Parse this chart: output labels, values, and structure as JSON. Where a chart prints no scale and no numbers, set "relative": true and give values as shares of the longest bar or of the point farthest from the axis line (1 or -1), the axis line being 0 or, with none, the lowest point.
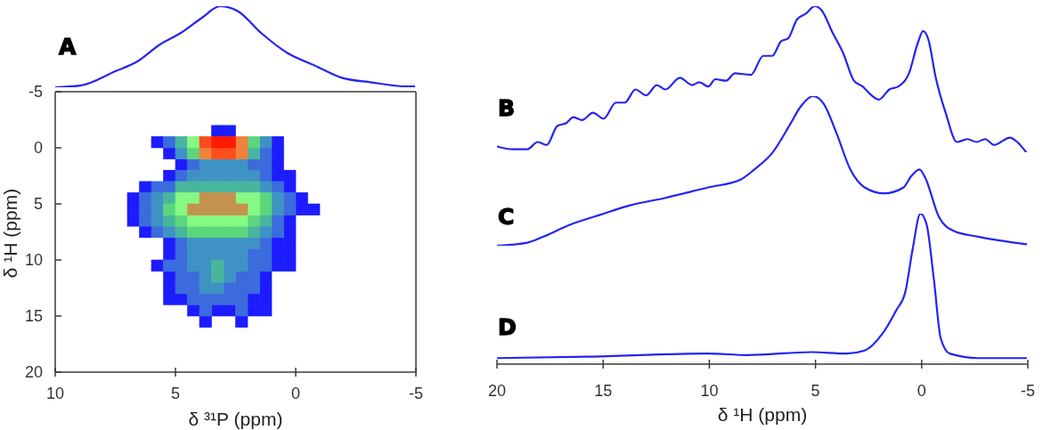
{
  "chart_data": [
    {
      "type": "line",
      "x": [
        10.0,
        8.96,
        7.48,
        6.63,
        5.63,
        4.78,
        3.89,
        3.15,
        2.41,
        1.44,
        0.33,
        -0.78,
        -1.89,
        -3.15,
        -4.63,
        -4.93
      ],
      "values": [
        0,
        0.02,
        0.2,
        0.31,
        0.53,
        0.67,
        0.86,
        1,
        0.94,
        0.67,
        0.42,
        0.27,
        0.12,
        0.06,
        0.01,
        0.01
      ],
      "color": "#2424f2",
      "relative": true,
      "xlim": [
        10,
        -5
      ],
      "tick_labels": false,
      "annotations": [
        "A"
      ]
    },
    {
      "type": "scatter",
      "marker": "square",
      "series": [
        {
          "color": "#1c1cff",
          "x": [
            3.25,
            2.75,
            5.75,
            0.75,
            5.25,
            0.75,
            4.75,
            0.75,
            5.25,
            0.75,
            0.25,
            6.25,
            0.25,
            6.75,
            -0.25,
            6.75,
            -0.25,
            -0.75,
            6.75,
            0.25,
            6.25,
            0.25,
            5.25,
            0.75,
            0.25,
            5.25,
            0.75,
            0.25,
            5.75,
            0.75,
            0.25,
            5.25,
            1.25,
            5.25,
            1.25,
            5.25,
            4.75,
            1.75,
            1.25,
            4.25,
            3.25,
            2.75,
            1.75,
            1.25,
            3.75,
            2.25
          ],
          "values": [
            -1.5,
            -1.5,
            -0.5,
            -0.5,
            0.5,
            0.5,
            1.5,
            1.5,
            2.5,
            2.5,
            2.5,
            3.5,
            3.5,
            4.5,
            4.5,
            5.5,
            5.5,
            5.5,
            6.5,
            6.5,
            7.5,
            7.5,
            8.5,
            8.5,
            8.5,
            9.5,
            9.5,
            9.5,
            10.5,
            10.5,
            10.5,
            11.5,
            11.5,
            12.5,
            12.5,
            13.5,
            13.5,
            13.5,
            13.5,
            14.5,
            14.5,
            14.5,
            14.5,
            14.5,
            15.5,
            15.5
          ]
        },
        {
          "color": "#3b6bdc",
          "x": [
            5.25,
            1.25,
            4.25,
            1.75,
            1.25,
            4.75,
            1.25,
            5.75,
            5.25,
            0.75,
            6.25,
            0.25,
            6.25,
            0.25,
            6.25,
            0.75,
            5.75,
            0.75,
            4.75,
            1.25,
            4.75,
            1.75,
            1.25,
            5.25,
            4.75,
            1.75,
            1.25,
            4.75,
            4.25,
            2.25,
            1.75,
            4.75,
            4.25,
            2.75,
            2.25,
            1.75,
            4.25,
            3.75,
            3.25,
            2.75,
            2.25,
            3.75,
            2.25
          ],
          "values": [
            -0.5,
            0.5,
            1.5,
            1.5,
            1.5,
            2.5,
            2.5,
            3.5,
            3.5,
            3.5,
            4.5,
            4.5,
            5.5,
            5.5,
            6.5,
            6.5,
            7.5,
            7.5,
            8.5,
            8.5,
            9.5,
            9.5,
            9.5,
            10.5,
            10.5,
            10.5,
            10.5,
            11.5,
            11.5,
            11.5,
            11.5,
            12.5,
            12.5,
            12.5,
            12.5,
            12.5,
            13.5,
            13.5,
            13.5,
            13.5,
            13.5,
            14.5,
            14.5
          ]
        },
        {
          "color": "#3f92c4",
          "x": [
            1.25,
            4.75,
            3.75,
            3.25,
            2.75,
            2.25,
            4.25,
            3.75,
            3.25,
            2.75,
            2.25,
            1.75,
            1.25,
            5.75,
            0.75,
            5.75,
            0.75,
            5.75,
            5.25,
            1.25,
            4.25,
            3.75,
            3.25,
            2.75,
            2.25,
            1.75,
            4.25,
            3.75,
            3.25,
            2.75,
            2.25,
            4.25,
            3.75,
            2.75,
            2.25,
            3.75,
            2.75,
            3.75,
            3.25
          ],
          "values": [
            -0.5,
            0.5,
            1.5,
            1.5,
            1.5,
            1.5,
            2.5,
            2.5,
            2.5,
            2.5,
            2.5,
            2.5,
            3.5,
            4.5,
            4.5,
            5.5,
            5.5,
            6.5,
            7.5,
            7.5,
            8.5,
            8.5,
            8.5,
            8.5,
            8.5,
            8.5,
            9.5,
            9.5,
            9.5,
            9.5,
            9.5,
            10.5,
            10.5,
            10.5,
            10.5,
            11.5,
            11.5,
            12.5,
            12.5
          ]
        },
        {
          "color": "#48b69c",
          "x": [
            4.75,
            1.75,
            4.75,
            4.25,
            3.75,
            3.25,
            2.75,
            2.25,
            1.75,
            5.25,
            5.25,
            1.25,
            4.75,
            1.75,
            3.25,
            3.25
          ],
          "values": [
            -0.5,
            0.5,
            3.5,
            3.5,
            3.5,
            3.5,
            3.5,
            3.5,
            3.5,
            4.5,
            6.5,
            6.5,
            7.5,
            7.5,
            10.5,
            11.5
          ]
        },
        {
          "color": "#5cd67c",
          "x": [
            1.75,
            4.25,
            1.25,
            5.25,
            1.25,
            4.75,
            1.75,
            4.25,
            3.75,
            3.25,
            2.75,
            2.25
          ],
          "values": [
            -0.5,
            0.5,
            4.5,
            5.5,
            5.5,
            6.5,
            6.5,
            7.5,
            7.5,
            7.5,
            7.5,
            7.5
          ]
        },
        {
          "color": "#86f884",
          "x": [
            4.25,
            4.75,
            4.25,
            2.25,
            1.75,
            4.75,
            1.75,
            4.25,
            3.75,
            3.25,
            2.75,
            2.25
          ],
          "values": [
            -0.5,
            4.5,
            4.5,
            4.5,
            4.5,
            5.5,
            5.5,
            6.5,
            6.5,
            6.5,
            6.5,
            6.5
          ]
        },
        {
          "color": "#c4924c",
          "x": [
            3.75,
            3.25,
            2.75,
            4.25,
            3.75,
            3.25,
            2.75,
            2.25
          ],
          "values": [
            4.5,
            4.5,
            4.5,
            5.5,
            5.5,
            5.5,
            5.5,
            5.5
          ]
        },
        {
          "color": "#f0823c",
          "x": [
            2.25,
            3.75,
            2.25
          ],
          "values": [
            -0.5,
            0.5,
            0.5
          ]
        },
        {
          "color": "#ff4c1c",
          "x": [
            3.75,
            3.25,
            2.75
          ],
          "values": [
            -0.5,
            0.5,
            0.5
          ]
        },
        {
          "color": "#ff1a00",
          "x": [
            3.25,
            2.75
          ],
          "values": [
            -0.5,
            -0.5
          ]
        }
      ],
      "xlim": [
        10,
        -5
      ],
      "xticks": [
        10,
        5,
        0,
        -5
      ],
      "ylim": [
        20,
        -5
      ],
      "yticks": [
        -5,
        0,
        5,
        10,
        15,
        20
      ],
      "xlabel": "δ ³¹P (ppm)",
      "ylabel": "δ ¹H (ppm)"
    },
    {
      "type": "line",
      "x": [
        20,
        19.25,
        18.58,
        18.08,
        17.66,
        17.16,
        16.74,
        16.4,
        15.99,
        15.48,
        14.98,
        14.4,
        13.98,
        13.48,
        12.98,
        12.47,
        12.06,
        11.39,
        10.8,
        10.47,
        10.05,
        9.72,
        9.21,
        8.8,
        8.04,
        7.46,
        7.04,
        6.62,
        6.29,
        5.87,
        5.45,
        5.03,
        4.7,
        4.2,
        3.7,
        3.19,
        2.78,
        2.36,
        2.02,
        1.52,
        1.1,
        0.6,
        0.18,
        -0.07,
        -0.32,
        -0.65,
        -1.15,
        -1.66,
        -2.16,
        -2.58,
        -2.99,
        -3.41,
        -4.16,
        -4.5,
        -4.92
      ],
      "values": [
        0.04,
        0.02,
        0.02,
        0.07,
        0.05,
        0.18,
        0.2,
        0.24,
        0.22,
        0.27,
        0.23,
        0.34,
        0.34,
        0.43,
        0.39,
        0.46,
        0.43,
        0.51,
        0.46,
        0.48,
        0.45,
        0.5,
        0.49,
        0.54,
        0.53,
        0.66,
        0.66,
        0.76,
        0.78,
        0.91,
        0.95,
        1,
        0.97,
        0.82,
        0.68,
        0.49,
        0.45,
        0.39,
        0.36,
        0.43,
        0.45,
        0.54,
        0.75,
        0.83,
        0.77,
        0.52,
        0.26,
        0.07,
        0.09,
        0.07,
        0.09,
        0.05,
        0.1,
        0.07,
        0
      ],
      "color": "#2424f2",
      "relative": true,
      "xlim": [
        20,
        -5
      ],
      "tick_labels": false,
      "annotations": [
        "B"
      ]
    },
    {
      "type": "line",
      "x": [
        20,
        18.58,
        17.83,
        16.57,
        15.07,
        13.73,
        12.06,
        10.05,
        8.55,
        7.88,
        7.04,
        6.2,
        5.7,
        5.12,
        4.62,
        4.03,
        3.36,
        2.69,
        1.77,
        0.85,
        0.52,
        0.1,
        -0.15,
        -0.82,
        -1.49,
        -2.66,
        -4.92
      ],
      "values": [
        0,
        0.02,
        0.06,
        0.14,
        0.21,
        0.27,
        0.32,
        0.39,
        0.44,
        0.51,
        0.62,
        0.81,
        0.93,
        1,
        0.95,
        0.76,
        0.51,
        0.39,
        0.35,
        0.39,
        0.46,
        0.51,
        0.46,
        0.19,
        0.1,
        0.06,
        0.01
      ],
      "color": "#2424f2",
      "relative": true,
      "xlim": [
        20,
        -5
      ],
      "tick_labels": false,
      "annotations": [
        "C"
      ]
    },
    {
      "type": "line",
      "x": [
        20,
        15.74,
        10.05,
        8.21,
        5.2,
        3.53,
        2.69,
        1.86,
        1.19,
        0.77,
        0.43,
        0.06,
        -0.23,
        -0.57,
        -0.9,
        -1.32,
        -2.66,
        -4.92
      ],
      "values": [
        0.04,
        0.05,
        0.07,
        0.06,
        0.08,
        0.07,
        0.09,
        0.2,
        0.36,
        0.48,
        0.76,
        1,
        0.93,
        0.57,
        0.17,
        0.07,
        0.04,
        0.04
      ],
      "color": "#2424f2",
      "relative": true,
      "xlim": [
        20,
        -5
      ],
      "xticks": [
        20,
        15,
        10,
        5,
        0,
        -5
      ],
      "tick_labels": "x",
      "xlabel": "δ ¹H (ppm)",
      "annotations": [
        "D"
      ]
    }
  ]
}
